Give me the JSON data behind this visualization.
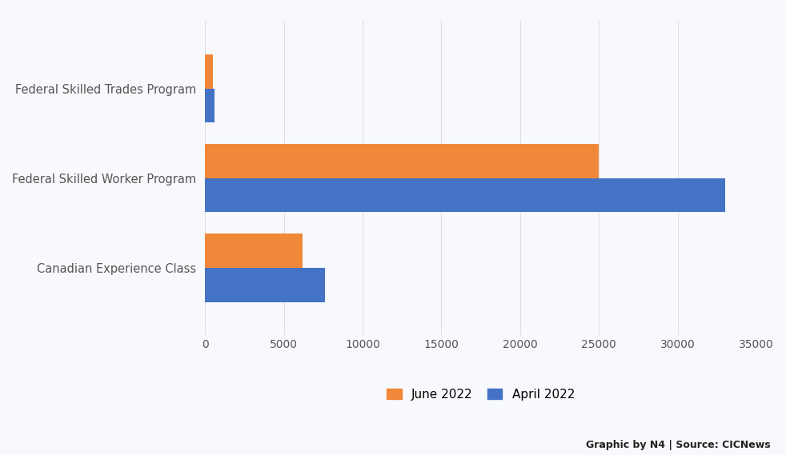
{
  "categories": [
    "Canadian Experience Class",
    "Federal Skilled Worker Program",
    "Federal Skilled Trades Program"
  ],
  "june_2022": [
    6200,
    25000,
    500
  ],
  "april_2022": [
    7600,
    33000,
    600
  ],
  "june_color": "#F0883A",
  "april_color": "#4472C4",
  "background_color": "#F7F9FC",
  "grid_color": "#E0E0E0",
  "xlim": [
    0,
    35000
  ],
  "xticks": [
    0,
    5000,
    10000,
    15000,
    20000,
    25000,
    30000,
    35000
  ],
  "legend_labels": [
    "June 2022",
    "April 2022"
  ],
  "bar_height": 0.38,
  "credit_text": "Graphic by N4 | Source: CICNews"
}
